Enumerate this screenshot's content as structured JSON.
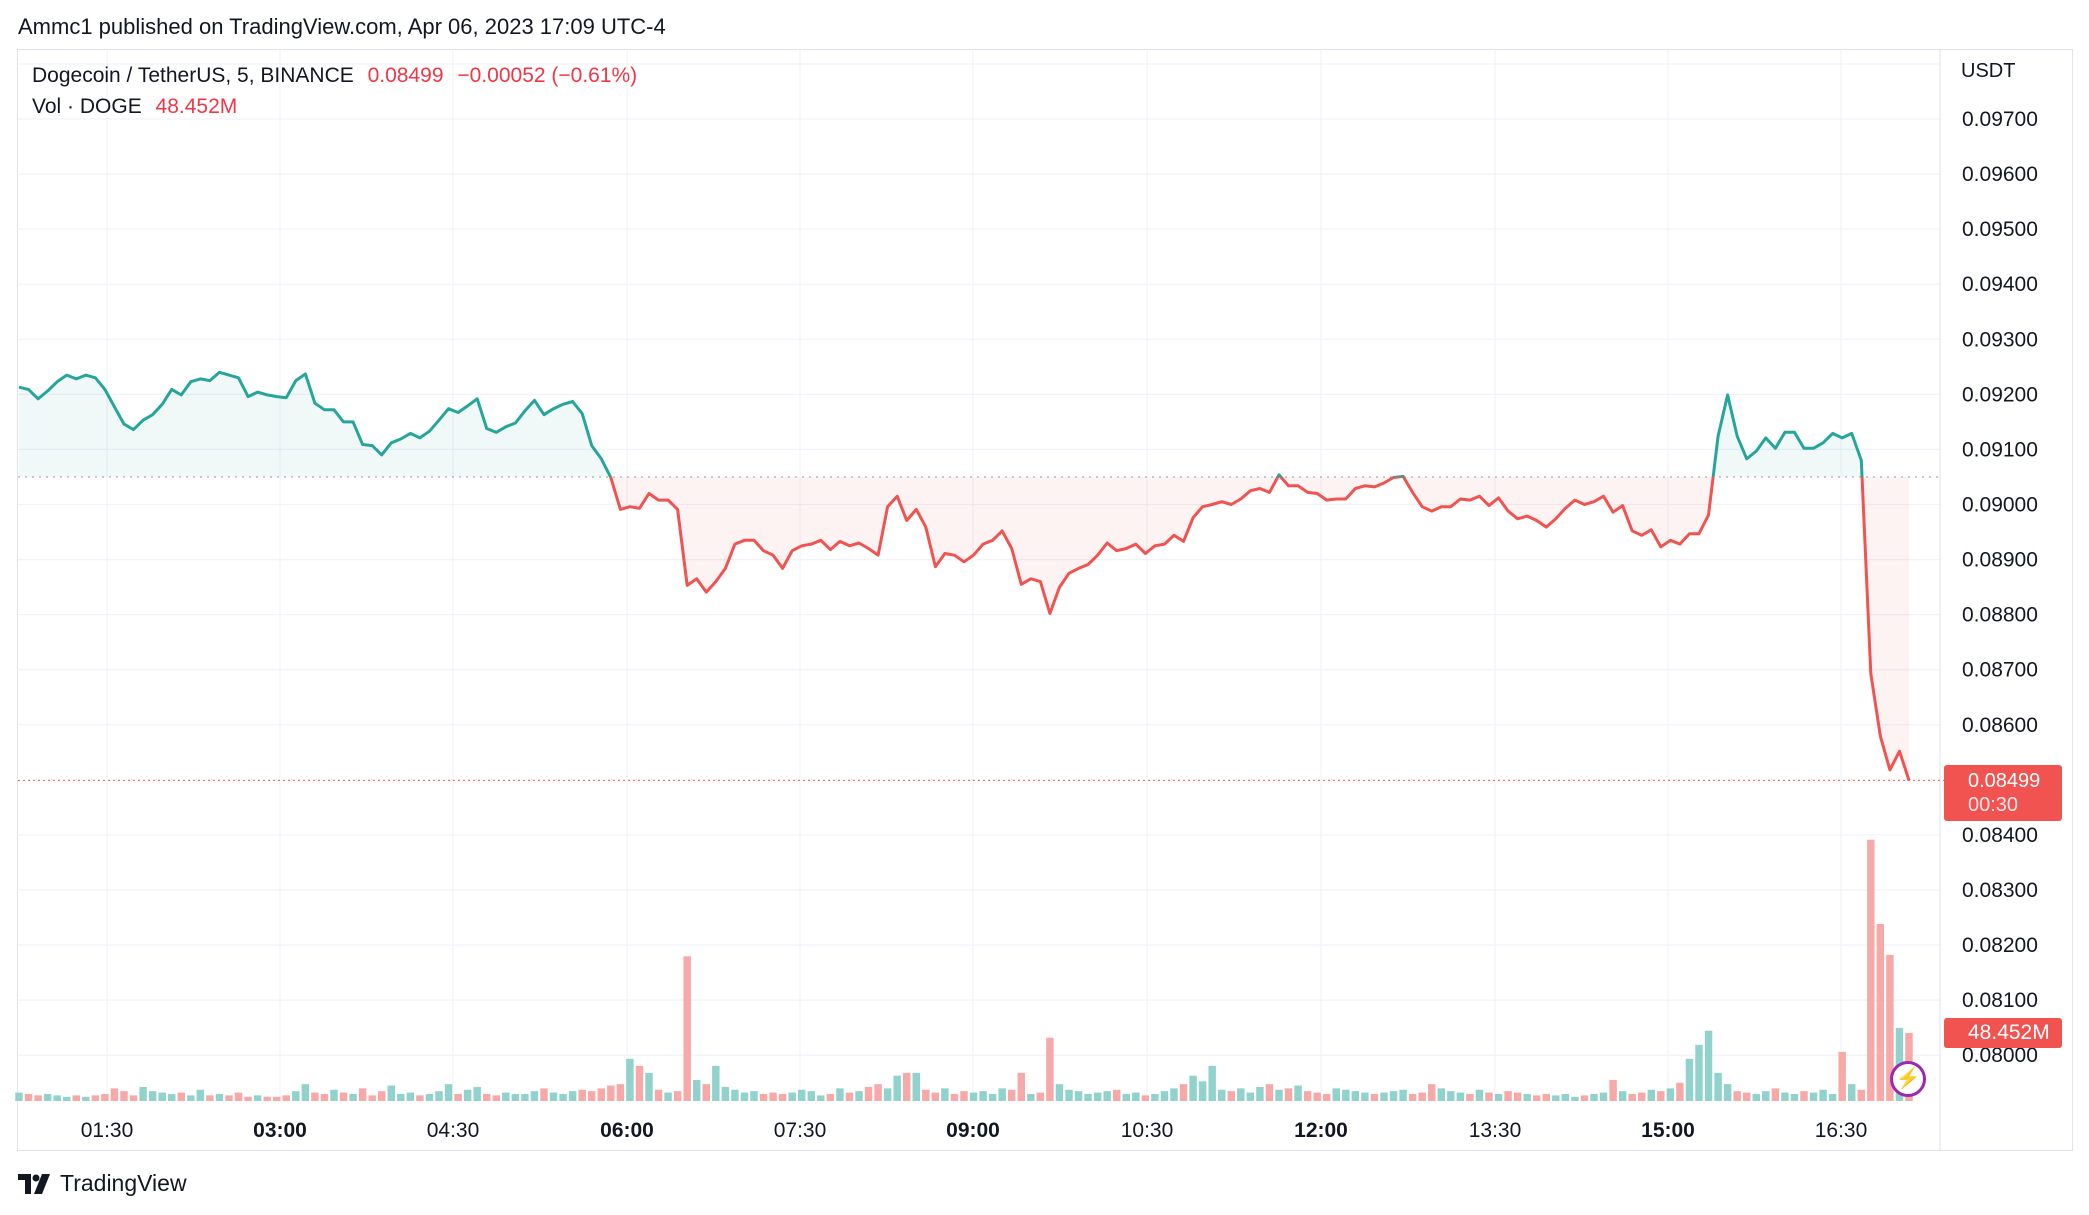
{
  "publish_line": "Ammc1 published on TradingView.com, Apr 06, 2023 17:09 UTC-4",
  "legend": {
    "symbol": "Dogecoin / TetherUS, 5, BINANCE",
    "last": "0.08499",
    "change": "−0.00052 (−0.61%)",
    "vol_label": "Vol · DOGE",
    "vol_value": "48.452M"
  },
  "currency": "USDT",
  "price_label": {
    "price": "0.08499",
    "countdown": "00:30"
  },
  "volume_label": "48.452M",
  "logo_text": "TradingView",
  "colors": {
    "up": "#26a69a",
    "down": "#f05350",
    "up_volume": "#92d2cc",
    "down_volume": "#f7a9a7",
    "accent": "#9c27b0"
  },
  "chart_data": {
    "type": "line",
    "style": "baseline",
    "interval_minutes": 5,
    "baseline": 0.0905,
    "ylim": [
      0.0793,
      0.0982
    ],
    "grid": true,
    "y_ticks": [
      "0.09700",
      "0.09600",
      "0.09500",
      "0.09400",
      "0.09300",
      "0.09200",
      "0.09100",
      "0.09000",
      "0.08900",
      "0.08800",
      "0.08700",
      "0.08600",
      "0.08400",
      "0.08300",
      "0.08200",
      "0.08100",
      "0.08000"
    ],
    "x_ticks": [
      {
        "label": "01:30",
        "bold": false
      },
      {
        "label": "03:00",
        "bold": true
      },
      {
        "label": "04:30",
        "bold": false
      },
      {
        "label": "06:00",
        "bold": true
      },
      {
        "label": "07:30",
        "bold": false
      },
      {
        "label": "09:00",
        "bold": true
      },
      {
        "label": "10:30",
        "bold": false
      },
      {
        "label": "12:00",
        "bold": true
      },
      {
        "label": "13:30",
        "bold": false
      },
      {
        "label": "15:00",
        "bold": true
      },
      {
        "label": "16:30",
        "bold": false
      }
    ],
    "close": [
      0.09213,
      0.09209,
      0.09192,
      0.09206,
      0.09223,
      0.09235,
      0.09228,
      0.09235,
      0.0923,
      0.09209,
      0.09177,
      0.09146,
      0.09136,
      0.09153,
      0.09163,
      0.09182,
      0.09209,
      0.09199,
      0.09223,
      0.09228,
      0.09225,
      0.0924,
      0.09235,
      0.0923,
      0.09196,
      0.09204,
      0.09199,
      0.09196,
      0.09194,
      0.09225,
      0.09237,
      0.09184,
      0.09172,
      0.09172,
      0.0915,
      0.0915,
      0.09109,
      0.09107,
      0.0909,
      0.09112,
      0.09119,
      0.09129,
      0.09121,
      0.09133,
      0.09153,
      0.09174,
      0.09167,
      0.09179,
      0.09192,
      0.09138,
      0.09131,
      0.09141,
      0.09148,
      0.0917,
      0.09189,
      0.09163,
      0.09174,
      0.09182,
      0.09187,
      0.09165,
      0.09107,
      0.09083,
      0.09049,
      0.08991,
      0.08996,
      0.08993,
      0.0902,
      0.09008,
      0.09008,
      0.08991,
      0.08853,
      0.08865,
      0.08841,
      0.0886,
      0.08884,
      0.08928,
      0.08935,
      0.08935,
      0.08916,
      0.08908,
      0.08884,
      0.08916,
      0.08925,
      0.08928,
      0.08935,
      0.08918,
      0.08933,
      0.08925,
      0.0893,
      0.0892,
      0.08908,
      0.08996,
      0.09015,
      0.08971,
      0.08991,
      0.08959,
      0.08887,
      0.08911,
      0.08908,
      0.08896,
      0.08908,
      0.08928,
      0.08935,
      0.08952,
      0.0892,
      0.08855,
      0.08865,
      0.0886,
      0.08802,
      0.0885,
      0.08875,
      0.08884,
      0.08891,
      0.08908,
      0.0893,
      0.08916,
      0.0892,
      0.08928,
      0.08911,
      0.08925,
      0.08928,
      0.08944,
      0.08933,
      0.08976,
      0.08996,
      0.09,
      0.09005,
      0.09,
      0.0901,
      0.09025,
      0.09029,
      0.09022,
      0.09054,
      0.09034,
      0.09034,
      0.09022,
      0.0902,
      0.09008,
      0.0901,
      0.0901,
      0.09029,
      0.09034,
      0.09032,
      0.09039,
      0.09049,
      0.09051,
      0.09022,
      0.08996,
      0.08988,
      0.08996,
      0.08996,
      0.0901,
      0.09008,
      0.09015,
      0.08998,
      0.09012,
      0.08988,
      0.08974,
      0.08979,
      0.08971,
      0.08959,
      0.08974,
      0.08993,
      0.09008,
      0.09,
      0.09005,
      0.09015,
      0.08986,
      0.08998,
      0.08952,
      0.08944,
      0.08954,
      0.08923,
      0.08935,
      0.08928,
      0.08947,
      0.08947,
      0.08981,
      0.09124,
      0.09199,
      0.09124,
      0.09083,
      0.09097,
      0.09121,
      0.09102,
      0.09131,
      0.09131,
      0.09102,
      0.09102,
      0.09112,
      0.09129,
      0.09121,
      0.09129,
      0.0908,
      0.08693,
      0.08579,
      0.08518,
      0.08552,
      0.08499
    ],
    "volume_millions": [
      6,
      5,
      4,
      5,
      4,
      3,
      4,
      3,
      4,
      5,
      9,
      7,
      4,
      10,
      7,
      6,
      5,
      6,
      4,
      8,
      4,
      5,
      4,
      6,
      3,
      4,
      3,
      3,
      4,
      7,
      12,
      6,
      5,
      8,
      6,
      5,
      9,
      4,
      7,
      11,
      5,
      6,
      4,
      5,
      7,
      12,
      5,
      8,
      10,
      5,
      4,
      6,
      5,
      5,
      7,
      9,
      6,
      5,
      7,
      8,
      7,
      9,
      11,
      12,
      30,
      25,
      20,
      8,
      6,
      7,
      103,
      15,
      12,
      25,
      10,
      8,
      6,
      7,
      5,
      6,
      5,
      6,
      8,
      7,
      4,
      5,
      9,
      6,
      7,
      10,
      12,
      9,
      18,
      20,
      20,
      8,
      6,
      9,
      5,
      7,
      6,
      7,
      5,
      9,
      8,
      20,
      5,
      6,
      45,
      12,
      8,
      7,
      5,
      6,
      7,
      8,
      5,
      6,
      4,
      5,
      7,
      9,
      12,
      18,
      14,
      25,
      8,
      7,
      9,
      6,
      10,
      12,
      8,
      9,
      11,
      7,
      6,
      5,
      9,
      8,
      7,
      6,
      5,
      6,
      7,
      8,
      5,
      6,
      12,
      9,
      7,
      6,
      5,
      8,
      6,
      5,
      7,
      6,
      5,
      4,
      5,
      4,
      5,
      3,
      4,
      5,
      6,
      15,
      7,
      5,
      6,
      8,
      7,
      9,
      13,
      30,
      40,
      50,
      20,
      12,
      7,
      6,
      5,
      7,
      9,
      6,
      5,
      7,
      6,
      8,
      5,
      35,
      12,
      8,
      186,
      126,
      104,
      52,
      48.452
    ]
  }
}
